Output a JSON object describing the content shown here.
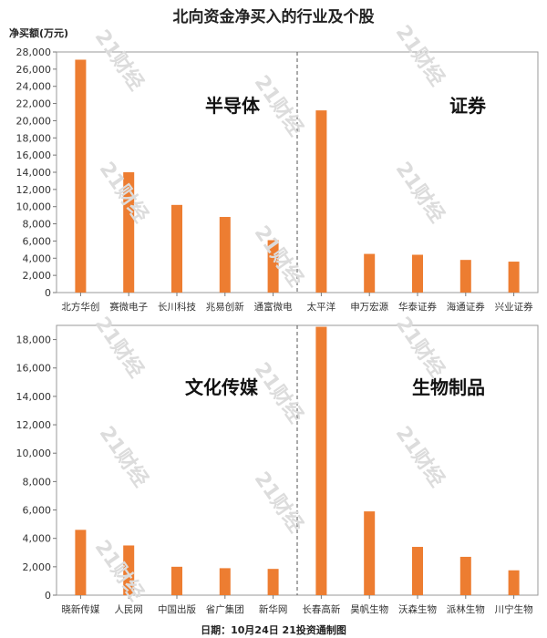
{
  "header": {
    "title": "北向资金净买入的行业及个股",
    "unit": "净买额(万元)",
    "footer": "日期：10月24日 21投资通制图",
    "watermark": "21财经"
  },
  "colors": {
    "bar": "#ED7D31",
    "frame": "#999999",
    "divider": "#555555"
  },
  "chart_data": [
    {
      "type": "bar",
      "ylim": [
        0,
        28000
      ],
      "yticks": [
        "0",
        "2,000",
        "4,000",
        "6,000",
        "8,000",
        "10,000",
        "12,000",
        "14,000",
        "16,000",
        "18,000",
        "20,000",
        "22,000",
        "24,000",
        "26,000",
        "28,000"
      ],
      "groups": [
        {
          "sector": "半导体",
          "categories": [
            "北方华创",
            "赛微电子",
            "长川科技",
            "兆易创新",
            "通富微电"
          ],
          "values": [
            27100,
            14000,
            10200,
            8800,
            6100
          ]
        },
        {
          "sector": "证券",
          "categories": [
            "太平洋",
            "申万宏源",
            "华泰证券",
            "海通证券",
            "兴业证券"
          ],
          "values": [
            21200,
            4500,
            4400,
            3800,
            3600
          ]
        }
      ]
    },
    {
      "type": "bar",
      "ylim": [
        0,
        19000
      ],
      "yticks": [
        "0",
        "2,000",
        "4,000",
        "6,000",
        "8,000",
        "10,000",
        "12,000",
        "14,000",
        "16,000",
        "18,000"
      ],
      "groups": [
        {
          "sector": "文化传媒",
          "categories": [
            "晓新传媒",
            "人民网",
            "中国出版",
            "省广集团",
            "新华网"
          ],
          "values": [
            4600,
            3500,
            2000,
            1900,
            1850
          ]
        },
        {
          "sector": "生物制品",
          "categories": [
            "长春高新",
            "昊帆生物",
            "沃森生物",
            "派林生物",
            "川宁生物"
          ],
          "values": [
            18900,
            5900,
            3400,
            2700,
            1750
          ]
        }
      ]
    }
  ]
}
